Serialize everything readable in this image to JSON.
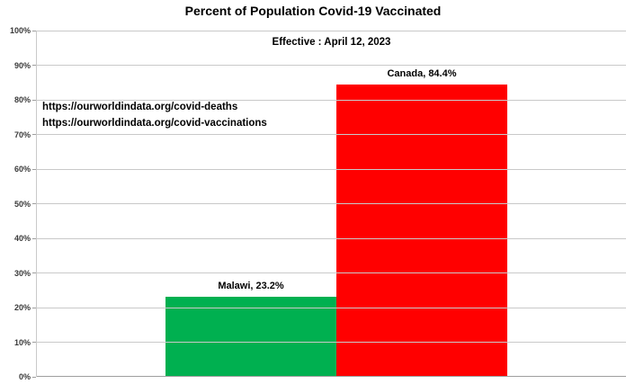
{
  "title": "Percent of Population Covid-19 Vaccinated",
  "subtitle": "Effective : April 12, 2023",
  "annotations": {
    "line1": "https://ourworldindata.org/covid-deaths",
    "line2": "https://ourworldindata.org/covid-vaccinations"
  },
  "colors": {
    "gridline": "#c9c9c9",
    "axis": "#9e9e9e",
    "text": "#000000",
    "tick_label": "#3a3a3a"
  },
  "chart_data": {
    "type": "bar",
    "categories": [
      "Malawi",
      "Canada"
    ],
    "values": [
      23.2,
      84.4
    ],
    "data_labels": [
      "Malawi, 23.2%",
      "Canada, 84.4%"
    ],
    "bar_colors": [
      "#00b050",
      "#ff0000"
    ],
    "title": "Percent of Population Covid-19 Vaccinated",
    "subtitle": "Effective : April 12, 2023",
    "xlabel": "",
    "ylabel": "",
    "ylim": [
      0,
      100
    ],
    "ytick_step": 10,
    "ytick_labels": [
      "0%",
      "10%",
      "20%",
      "30%",
      "40%",
      "50%",
      "60%",
      "70%",
      "80%",
      "90%",
      "100%"
    ],
    "grid": true,
    "legend_position": "none",
    "annotations": [
      "https://ourworldindata.org/covid-deaths",
      "https://ourworldindata.org/covid-vaccinations"
    ]
  }
}
